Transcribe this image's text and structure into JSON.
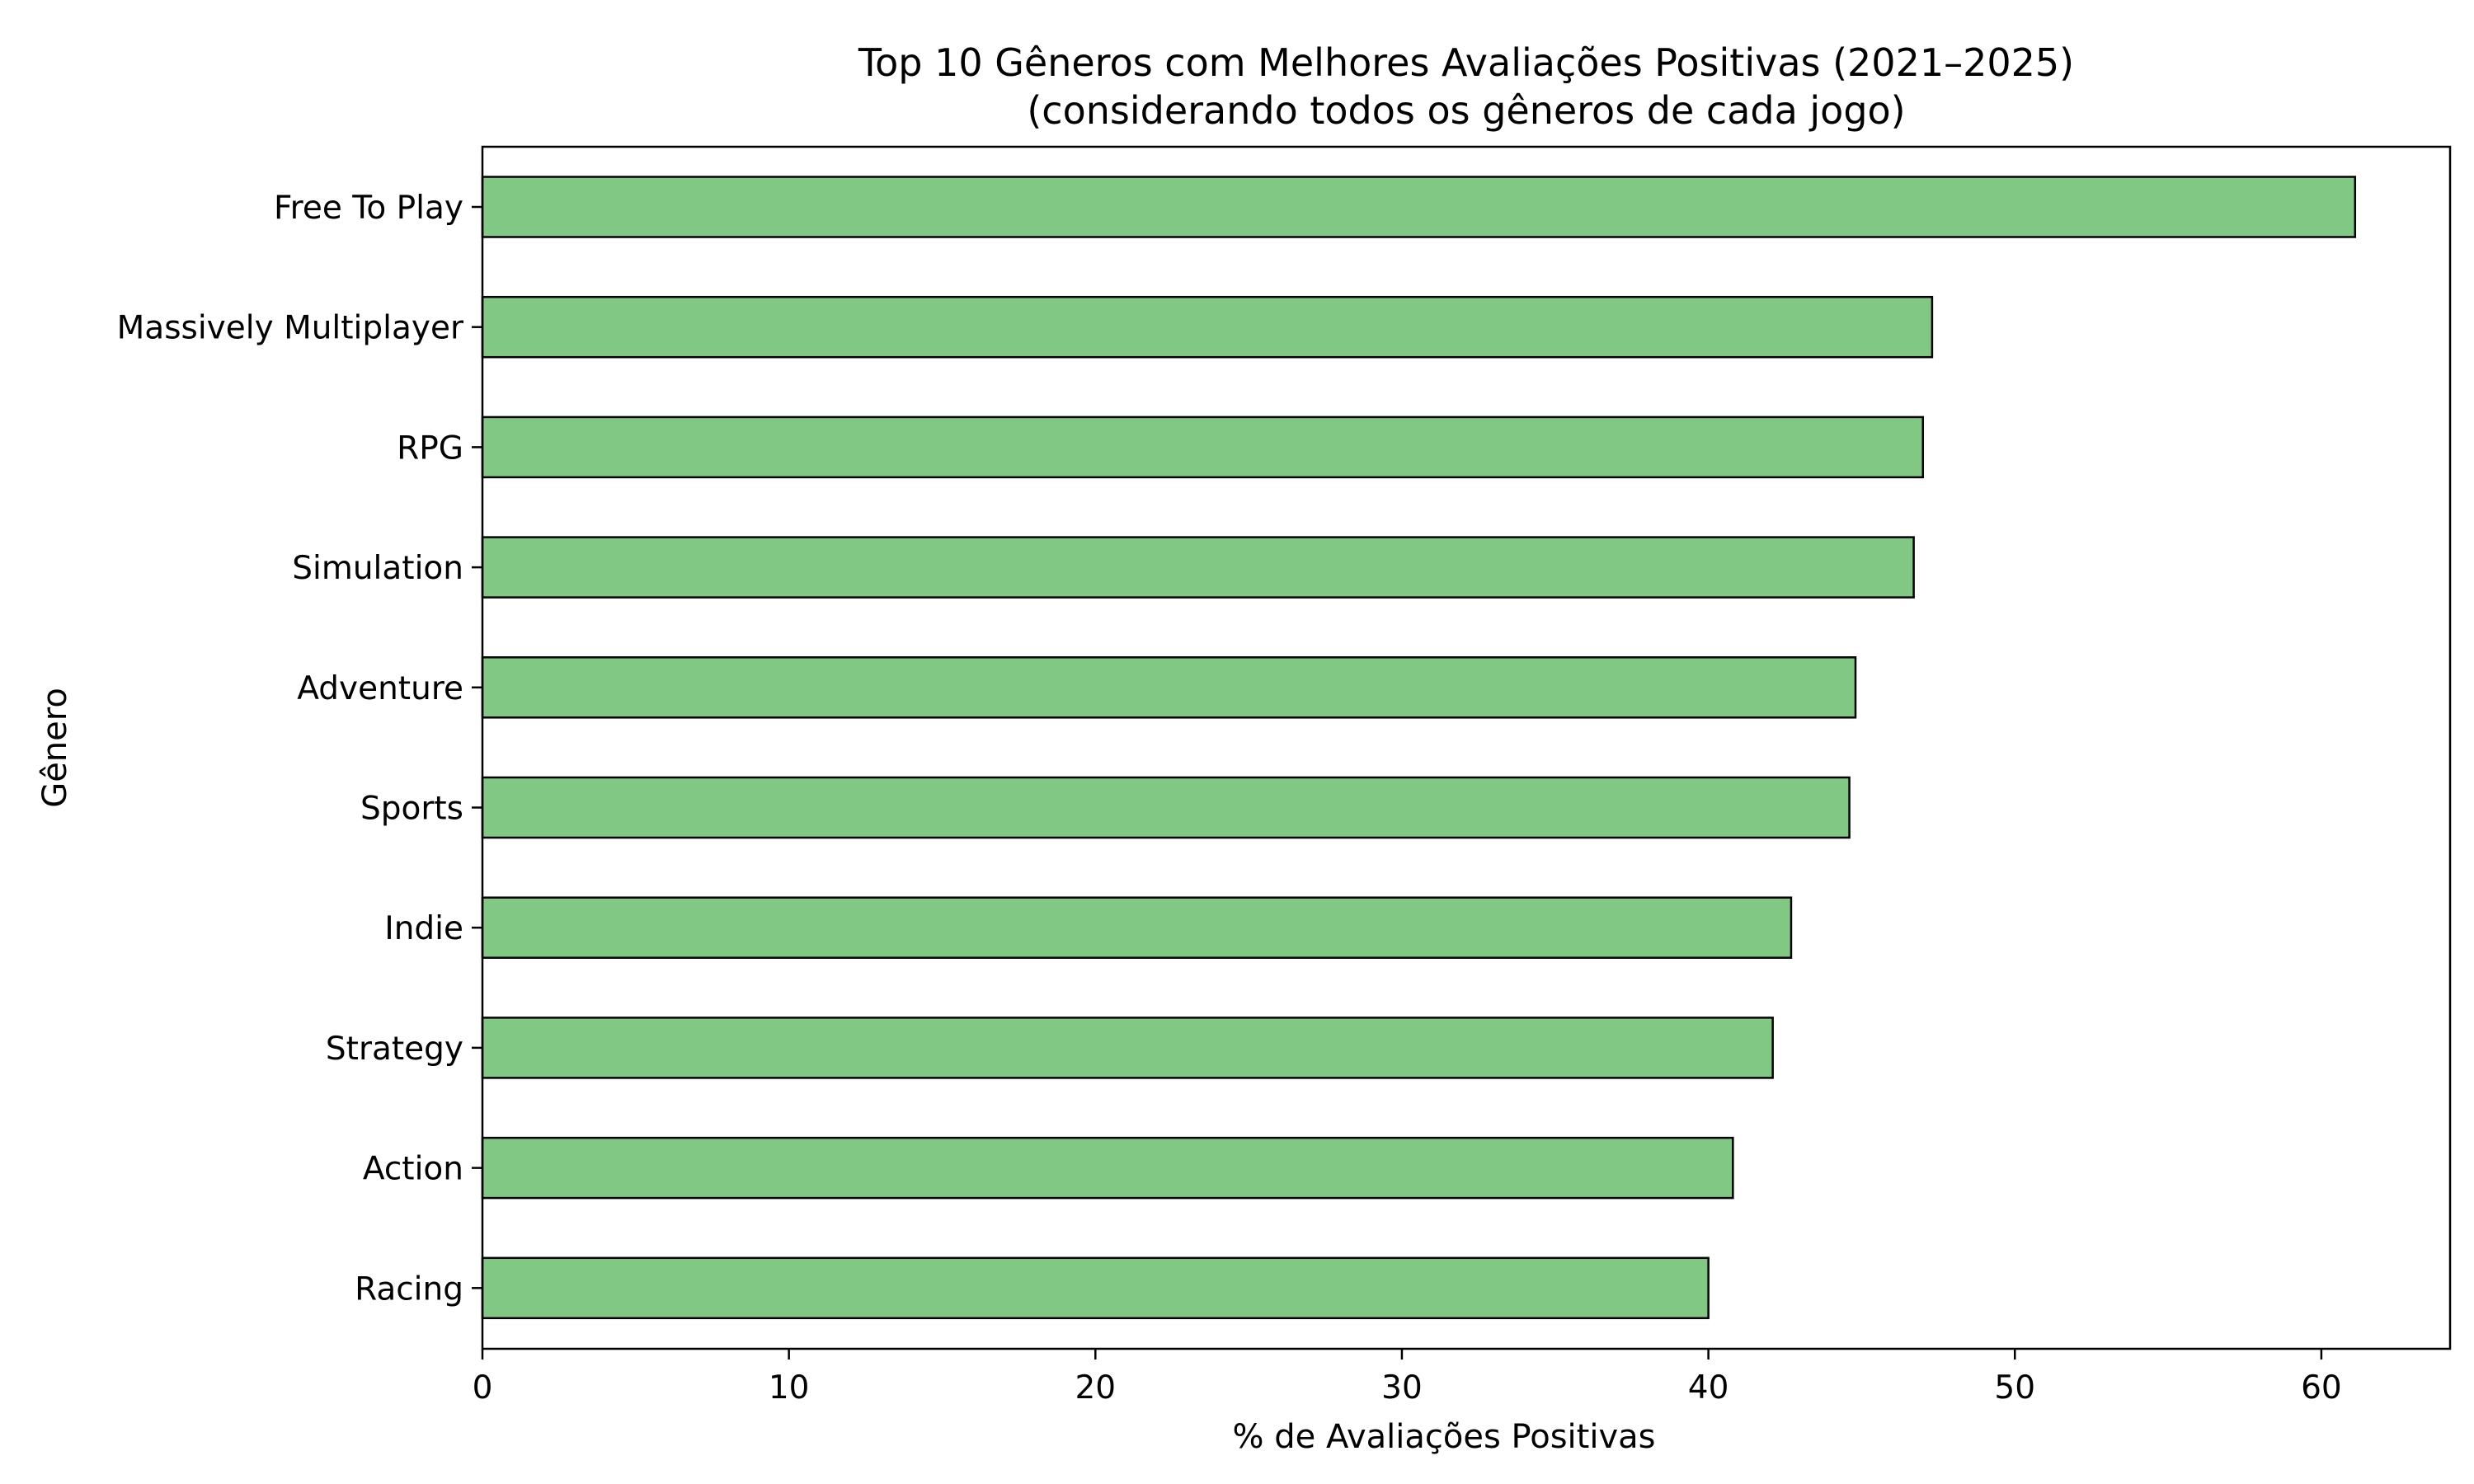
{
  "chart_data": {
    "type": "bar",
    "orientation": "horizontal",
    "title": "Top 10 Gêneros com Melhores Avaliações Positivas (2021–2025)",
    "subtitle": "(considerando todos os gêneros de cada jogo)",
    "xlabel": "% de Avaliações Positivas",
    "ylabel": "Gênero",
    "categories": [
      "Free To Play",
      "Massively Multiplayer",
      "RPG",
      "Simulation",
      "Adventure",
      "Sports",
      "Indie",
      "Strategy",
      "Action",
      "Racing"
    ],
    "values": [
      61.1,
      47.3,
      47.0,
      46.7,
      44.8,
      44.6,
      42.7,
      42.1,
      40.8,
      40.0
    ],
    "xlim": [
      0,
      64.2
    ],
    "xticks": [
      0,
      10,
      20,
      30,
      40,
      50,
      60
    ],
    "grid": false,
    "bar_color": "#80c883",
    "edge_color": "#000000"
  }
}
